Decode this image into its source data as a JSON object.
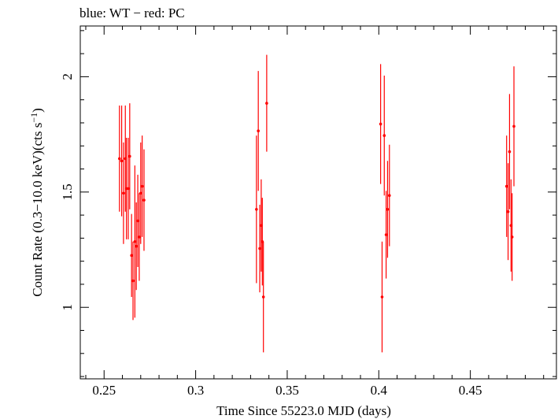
{
  "chart_data": {
    "type": "scatter",
    "title": "blue: WT − red: PC",
    "xlabel": "Time Since 55223.0 MJD (days)",
    "ylabel_main": "Count Rate (0.3−10.0 keV)(cts s",
    "ylabel_sup": "−1",
    "ylabel_close": ")",
    "xlim": [
      0.237,
      0.497
    ],
    "ylim": [
      0.69,
      2.22
    ],
    "x_ticks": [
      0.25,
      0.3,
      0.35,
      0.4,
      0.45
    ],
    "x_tick_labels": [
      "0.25",
      "0.3",
      "0.35",
      "0.4",
      "0.45"
    ],
    "y_ticks": [
      1,
      1.5,
      2
    ],
    "y_tick_labels": [
      "1",
      "1.5",
      "2"
    ],
    "grid": false,
    "series": [
      {
        "color": "#ff0000",
        "points": [
          {
            "x": 0.2584,
            "y": 1.645,
            "err": 0.23
          },
          {
            "x": 0.2596,
            "y": 1.635,
            "err": 0.24
          },
          {
            "x": 0.2606,
            "y": 1.495,
            "err": 0.22
          },
          {
            "x": 0.2616,
            "y": 1.645,
            "err": 0.23
          },
          {
            "x": 0.2622,
            "y": 1.515,
            "err": 0.22
          },
          {
            "x": 0.2632,
            "y": 1.515,
            "err": 0.22
          },
          {
            "x": 0.264,
            "y": 1.655,
            "err": 0.23
          },
          {
            "x": 0.265,
            "y": 1.225,
            "err": 0.18
          },
          {
            "x": 0.2658,
            "y": 1.115,
            "err": 0.17
          },
          {
            "x": 0.2668,
            "y": 1.285,
            "err": 0.33
          },
          {
            "x": 0.2676,
            "y": 1.265,
            "err": 0.19
          },
          {
            "x": 0.2684,
            "y": 1.375,
            "err": 0.2
          },
          {
            "x": 0.2692,
            "y": 1.305,
            "err": 0.19
          },
          {
            "x": 0.27,
            "y": 1.495,
            "err": 0.22
          },
          {
            "x": 0.2708,
            "y": 1.525,
            "err": 0.22
          },
          {
            "x": 0.2718,
            "y": 1.465,
            "err": 0.22
          },
          {
            "x": 0.3332,
            "y": 1.425,
            "err": 0.32
          },
          {
            "x": 0.3342,
            "y": 1.765,
            "err": 0.26
          },
          {
            "x": 0.335,
            "y": 1.255,
            "err": 0.19
          },
          {
            "x": 0.3358,
            "y": 1.355,
            "err": 0.2
          },
          {
            "x": 0.3364,
            "y": 1.285,
            "err": 0.19
          },
          {
            "x": 0.337,
            "y": 1.045,
            "err": 0.24
          },
          {
            "x": 0.3388,
            "y": 1.885,
            "err": 0.21
          },
          {
            "x": 0.401,
            "y": 1.795,
            "err": 0.26
          },
          {
            "x": 0.4018,
            "y": 1.045,
            "err": 0.24
          },
          {
            "x": 0.403,
            "y": 1.745,
            "err": 0.26
          },
          {
            "x": 0.404,
            "y": 1.315,
            "err": 0.19
          },
          {
            "x": 0.4048,
            "y": 1.425,
            "err": 0.21
          },
          {
            "x": 0.4058,
            "y": 1.485,
            "err": 0.22
          },
          {
            "x": 0.4698,
            "y": 1.525,
            "err": 0.22
          },
          {
            "x": 0.4706,
            "y": 1.415,
            "err": 0.21
          },
          {
            "x": 0.4714,
            "y": 1.675,
            "err": 0.25
          },
          {
            "x": 0.4722,
            "y": 1.355,
            "err": 0.2
          },
          {
            "x": 0.4728,
            "y": 1.305,
            "err": 0.19
          },
          {
            "x": 0.4738,
            "y": 1.785,
            "err": 0.26
          }
        ]
      }
    ]
  }
}
